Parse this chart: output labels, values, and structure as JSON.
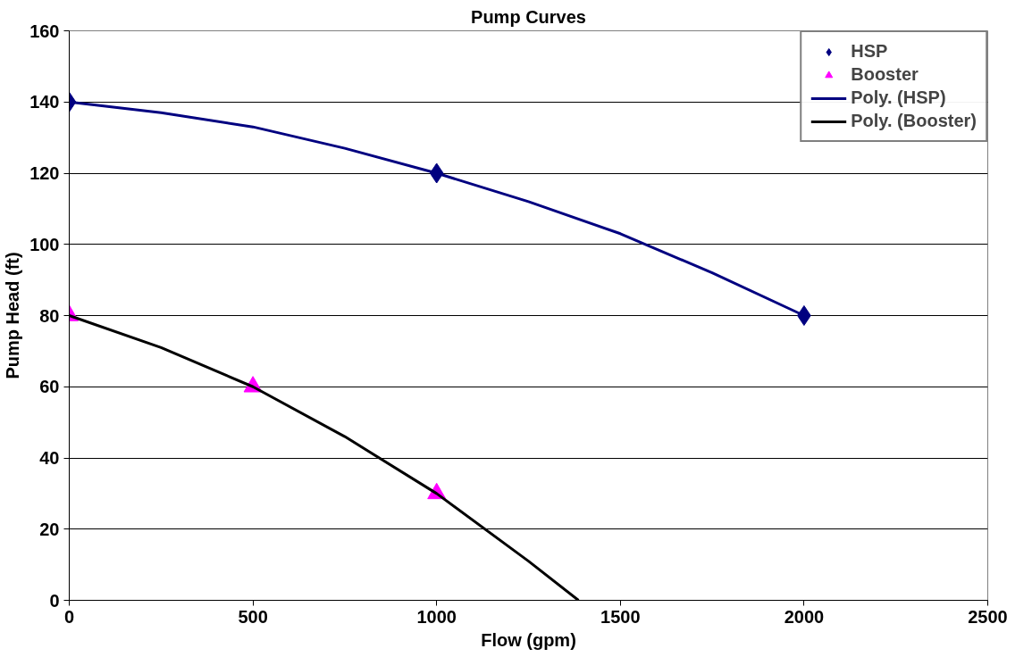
{
  "chart_data": {
    "type": "scatter",
    "title": "Pump Curves",
    "xlabel": "Flow (gpm)",
    "ylabel": "Pump Head (ft)",
    "xlim": [
      0,
      2500
    ],
    "ylim": [
      0,
      160
    ],
    "xticks": [
      0,
      500,
      1000,
      1500,
      2000,
      2500
    ],
    "yticks": [
      0,
      20,
      40,
      60,
      80,
      100,
      120,
      140,
      160
    ],
    "grid": "y",
    "legend": "top right",
    "series": [
      {
        "name": "HSP",
        "marker": "diamond",
        "color": "#000080",
        "x": [
          0,
          1000,
          2000
        ],
        "values": [
          140,
          120,
          80
        ]
      },
      {
        "name": "Booster",
        "marker": "triangle",
        "color": "#ff00ff",
        "x": [
          0,
          500,
          1000
        ],
        "values": [
          80,
          60,
          30
        ]
      },
      {
        "name": "Poly. (HSP)",
        "type": "line",
        "color": "#000080",
        "x": [
          0,
          250,
          500,
          750,
          1000,
          1250,
          1500,
          1750,
          2000
        ],
        "values": [
          140,
          137,
          133,
          127,
          120,
          112,
          103,
          92,
          80
        ]
      },
      {
        "name": "Poly. (Booster)",
        "type": "line",
        "color": "#000000",
        "x": [
          0,
          250,
          500,
          750,
          1000,
          1250,
          1386
        ],
        "values": [
          80,
          71,
          60,
          46,
          30,
          11,
          0
        ]
      }
    ]
  }
}
